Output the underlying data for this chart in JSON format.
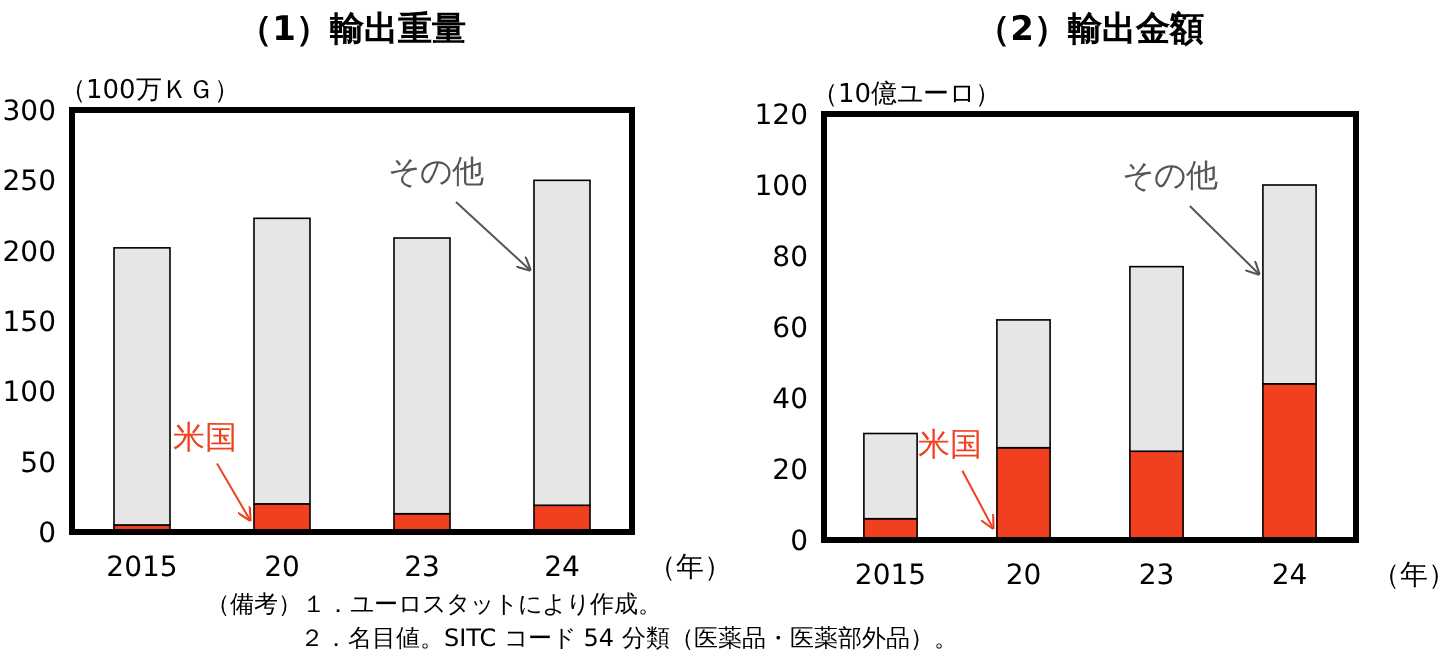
{
  "chart_data": [
    {
      "type": "bar",
      "title": "（1）輸出重量",
      "ylabel": "（100万ＫＧ）",
      "xlabel": "（年）",
      "stacked": true,
      "legend": false,
      "grid": false,
      "categories": [
        "2015",
        "20",
        "23",
        "24"
      ],
      "ylim": [
        0,
        300
      ],
      "yticks": [
        0,
        50,
        100,
        150,
        200,
        250,
        300
      ],
      "series": [
        {
          "name": "米国",
          "color": "#f04020",
          "values": [
            5,
            20,
            13,
            19
          ]
        },
        {
          "name": "その他",
          "color": "#e6e6e6",
          "values": [
            197,
            203,
            196,
            231
          ]
        }
      ],
      "annotations": [
        "（備考）１．ユーロスタットにより作成。",
        "２．名目値。SITC コード 54 分類（医薬品・医薬部外品）。"
      ]
    },
    {
      "type": "bar",
      "title": "（2）輸出金額",
      "ylabel": "（10億ユーロ）",
      "xlabel": "（年）",
      "stacked": true,
      "legend": false,
      "grid": false,
      "categories": [
        "2015",
        "20",
        "23",
        "24"
      ],
      "ylim": [
        0,
        120
      ],
      "yticks": [
        0,
        20,
        40,
        60,
        80,
        100,
        120
      ],
      "series": [
        {
          "name": "米国",
          "color": "#f04020",
          "values": [
            6,
            26,
            25,
            44
          ]
        },
        {
          "name": "その他",
          "color": "#e6e6e6",
          "values": [
            24,
            36,
            52,
            56
          ]
        }
      ]
    }
  ]
}
